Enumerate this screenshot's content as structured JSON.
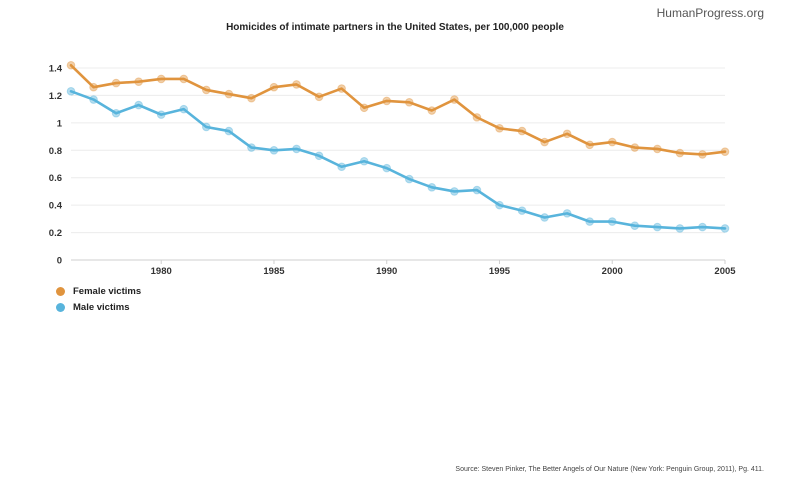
{
  "brand": "HumanProgress.org",
  "source": "Source: Steven Pinker, The Better Angels of Our Nature (New York: Penguin Group, 2011), Pg. 411.",
  "chart_data": {
    "type": "line",
    "title": "Homicides of intimate partners in the United States, per 100,000 people",
    "xlabel": "",
    "ylabel": "",
    "x": [
      1976,
      1977,
      1978,
      1979,
      1980,
      1981,
      1982,
      1983,
      1984,
      1985,
      1986,
      1987,
      1988,
      1989,
      1990,
      1991,
      1992,
      1993,
      1994,
      1995,
      1996,
      1997,
      1998,
      1999,
      2000,
      2001,
      2002,
      2003,
      2004,
      2005
    ],
    "xticks": [
      1980,
      1985,
      1990,
      1995,
      2000,
      2005
    ],
    "yticks": [
      0,
      0.2,
      0.4,
      0.6,
      0.8,
      1,
      1.2,
      1.4
    ],
    "ylim": [
      0,
      1.4
    ],
    "xlim": [
      1976,
      2005
    ],
    "grid": true,
    "legend_position": "bottom-left",
    "series": [
      {
        "name": "Female victims",
        "color": "#e0943e",
        "values": [
          1.42,
          1.26,
          1.29,
          1.3,
          1.32,
          1.32,
          1.24,
          1.21,
          1.18,
          1.26,
          1.28,
          1.19,
          1.25,
          1.11,
          1.16,
          1.15,
          1.09,
          1.17,
          1.04,
          0.96,
          0.94,
          0.86,
          0.92,
          0.84,
          0.86,
          0.82,
          0.81,
          0.78,
          0.77,
          0.79
        ]
      },
      {
        "name": "Male victims",
        "color": "#58b4dc",
        "values": [
          1.23,
          1.17,
          1.07,
          1.13,
          1.06,
          1.1,
          0.97,
          0.94,
          0.82,
          0.8,
          0.81,
          0.76,
          0.68,
          0.72,
          0.67,
          0.59,
          0.53,
          0.5,
          0.51,
          0.4,
          0.36,
          0.31,
          0.34,
          0.28,
          0.28,
          0.25,
          0.24,
          0.23,
          0.24,
          0.23
        ]
      }
    ]
  }
}
